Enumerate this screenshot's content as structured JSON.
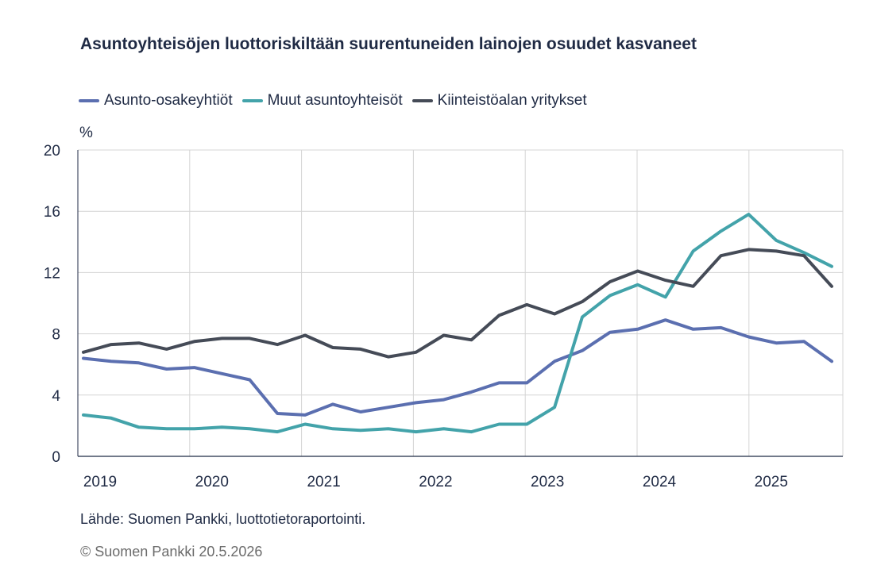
{
  "chart_data": {
    "type": "line",
    "title": "Asuntoyhteisöjen luottoriskiltään suurentuneiden lainojen osuudet kasvaneet",
    "ylabel": "%",
    "ylim": [
      0,
      20
    ],
    "yticks": [
      0,
      4,
      8,
      12,
      16,
      20
    ],
    "xlim": [
      2019.0,
      2025.8
    ],
    "xticks": [
      2019,
      2020,
      2021,
      2022,
      2023,
      2024,
      2025
    ],
    "grid": true,
    "legend_position": "top",
    "x": [
      2019.0,
      2019.25,
      2019.5,
      2019.75,
      2020.0,
      2020.25,
      2020.5,
      2020.75,
      2021.0,
      2021.25,
      2021.5,
      2021.75,
      2022.0,
      2022.25,
      2022.5,
      2022.75,
      2023.0,
      2023.25,
      2023.5,
      2023.75,
      2024.0,
      2024.25,
      2024.5,
      2024.75,
      2025.0,
      2025.25,
      2025.5,
      2025.75
    ],
    "series": [
      {
        "name": "Asunto-osakeyhtiöt",
        "color": "#5b6fb0",
        "values": [
          6.4,
          6.2,
          6.1,
          5.7,
          5.8,
          5.4,
          5.0,
          2.8,
          2.7,
          3.4,
          2.9,
          3.2,
          3.5,
          3.7,
          4.2,
          4.8,
          4.8,
          6.2,
          6.9,
          8.1,
          8.3,
          8.9,
          8.3,
          8.4,
          7.8,
          7.4,
          7.5,
          6.2
        ]
      },
      {
        "name": "Muut asuntoyhteisöt",
        "color": "#43a3aa",
        "values": [
          2.7,
          2.5,
          1.9,
          1.8,
          1.8,
          1.9,
          1.8,
          1.6,
          2.1,
          1.8,
          1.7,
          1.8,
          1.6,
          1.8,
          1.6,
          2.1,
          2.1,
          3.2,
          9.1,
          10.5,
          11.2,
          10.4,
          13.4,
          14.7,
          15.8,
          14.1,
          13.3,
          12.4
        ]
      },
      {
        "name": "Kiinteistöalan yritykset",
        "color": "#454b57",
        "values": [
          6.8,
          7.3,
          7.4,
          7.0,
          7.5,
          7.7,
          7.7,
          7.3,
          7.9,
          7.1,
          7.0,
          6.5,
          6.8,
          7.9,
          7.6,
          9.2,
          9.9,
          9.3,
          10.1,
          11.4,
          12.1,
          11.5,
          11.1,
          13.1,
          13.5,
          13.4,
          13.1,
          11.1
        ]
      }
    ]
  },
  "footer": {
    "source": "Lähde: Suomen Pankki, luottotietoraportointi.",
    "copyright": "© Suomen Pankki 20.5.2026"
  }
}
